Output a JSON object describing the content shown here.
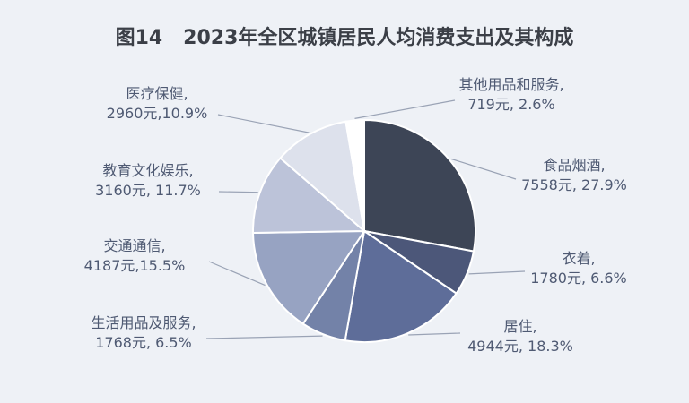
{
  "title": "图14   2023年全区城镇居民人均消费支出及其构成",
  "colors": {
    "background": "#eef1f6",
    "slice_stroke": "#ffffff",
    "leader_line": "#9aa3b5",
    "label_text": "#4f5a73",
    "title_text": "#3b3f47"
  },
  "chart_data": {
    "type": "pie",
    "title": "图14   2023年全区城镇居民人均消费支出及其构成",
    "unit": "元",
    "start_angle_deg": 0,
    "direction": "clockwise",
    "slices": [
      {
        "name": "食品烟酒",
        "value": 7558,
        "percent": 27.9,
        "label_line1": "食品烟酒,",
        "label_line2": "7558元, 27.9%",
        "color": "#3d4556"
      },
      {
        "name": "衣着",
        "value": 1780,
        "percent": 6.6,
        "label_line1": "衣着,",
        "label_line2": "1780元, 6.6%",
        "color": "#4c5779"
      },
      {
        "name": "居住",
        "value": 4944,
        "percent": 18.3,
        "label_line1": "居住,",
        "label_line2": "4944元, 18.3%",
        "color": "#5e6d99"
      },
      {
        "name": "生活用品及服务",
        "value": 1768,
        "percent": 6.5,
        "label_line1": "生活用品及服务,",
        "label_line2": "1768元, 6.5%",
        "color": "#7382a8"
      },
      {
        "name": "交通通信",
        "value": 4187,
        "percent": 15.5,
        "label_line1": "交通通信,",
        "label_line2": "4187元,15.5%",
        "color": "#97a3c2"
      },
      {
        "name": "教育文化娱乐",
        "value": 3160,
        "percent": 11.7,
        "label_line1": "教育文化娱乐,",
        "label_line2": "3160元, 11.7%",
        "color": "#bcc3d9"
      },
      {
        "name": "医疗保健",
        "value": 2960,
        "percent": 10.9,
        "label_line1": "医疗保健,",
        "label_line2": "2960元,10.9%",
        "color": "#dde1ec"
      },
      {
        "name": "其他用品和服务",
        "value": 719,
        "percent": 2.6,
        "label_line1": "其他用品和服务,",
        "label_line2": "719元, 2.6%",
        "color": "#ffffff"
      }
    ]
  }
}
